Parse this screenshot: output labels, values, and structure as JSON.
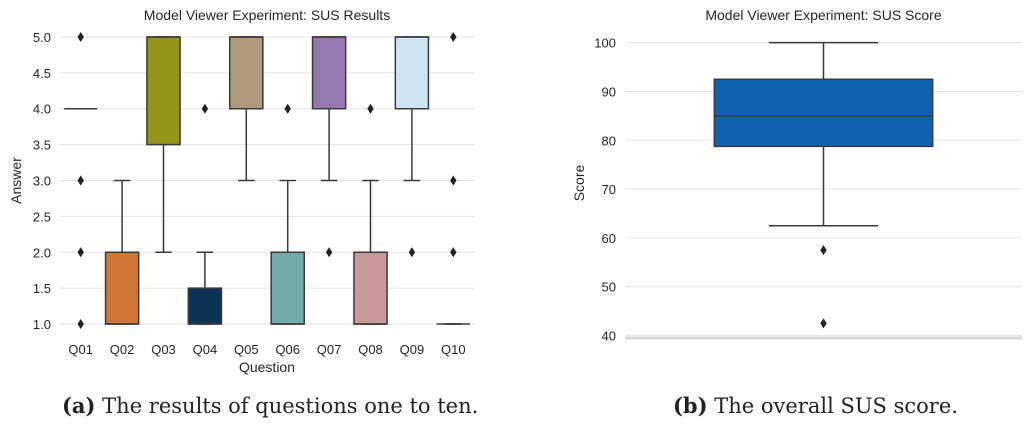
{
  "chart_data": [
    {
      "type": "box",
      "title": "Model Viewer Experiment: SUS Results",
      "xlabel": "Question",
      "ylabel": "Answer",
      "ylim": [
        0.875,
        5.125
      ],
      "yticks": [
        "1.0",
        "1.5",
        "2.0",
        "2.5",
        "3.0",
        "3.5",
        "4.0",
        "4.5",
        "5.0"
      ],
      "grid": true,
      "categories": [
        "Q01",
        "Q02",
        "Q03",
        "Q04",
        "Q05",
        "Q06",
        "Q07",
        "Q08",
        "Q09",
        "Q10"
      ],
      "boxes": [
        {
          "category": "Q01",
          "q1": 4,
          "median": 4,
          "q3": 4,
          "whisker_low": 4,
          "whisker_high": 4,
          "outliers": [
            1,
            2,
            3,
            5
          ],
          "color": "#2b2b2b"
        },
        {
          "category": "Q02",
          "q1": 1,
          "median": 1,
          "q3": 2,
          "whisker_low": 1,
          "whisker_high": 3,
          "outliers": [],
          "color": "#cf7535"
        },
        {
          "category": "Q03",
          "q1": 3.5,
          "median": 5,
          "q3": 5,
          "whisker_low": 2,
          "whisker_high": 5,
          "outliers": [],
          "color": "#949418"
        },
        {
          "category": "Q04",
          "q1": 1,
          "median": 1,
          "q3": 1.5,
          "whisker_low": 1,
          "whisker_high": 2,
          "outliers": [
            4
          ],
          "color": "#0b3356"
        },
        {
          "category": "Q05",
          "q1": 4,
          "median": 5,
          "q3": 5,
          "whisker_low": 3,
          "whisker_high": 5,
          "outliers": [],
          "color": "#b09a79"
        },
        {
          "category": "Q06",
          "q1": 1,
          "median": 1,
          "q3": 2,
          "whisker_low": 1,
          "whisker_high": 3,
          "outliers": [
            4
          ],
          "color": "#75aaad"
        },
        {
          "category": "Q07",
          "q1": 4,
          "median": 5,
          "q3": 5,
          "whisker_low": 3,
          "whisker_high": 5,
          "outliers": [
            2
          ],
          "color": "#9678b0"
        },
        {
          "category": "Q08",
          "q1": 1,
          "median": 1,
          "q3": 2,
          "whisker_low": 1,
          "whisker_high": 3,
          "outliers": [
            4
          ],
          "color": "#c99a99"
        },
        {
          "category": "Q09",
          "q1": 4,
          "median": 5,
          "q3": 5,
          "whisker_low": 3,
          "whisker_high": 5,
          "outliers": [
            2
          ],
          "color": "#cfe4f3"
        },
        {
          "category": "Q10",
          "q1": 1,
          "median": 1,
          "q3": 1,
          "whisker_low": 1,
          "whisker_high": 1,
          "outliers": [
            2,
            3,
            5
          ],
          "color": "#2b2b2b"
        }
      ]
    },
    {
      "type": "box",
      "title": "Model Viewer Experiment: SUS Score",
      "xlabel": "",
      "ylabel": "Score",
      "ylim": [
        39.5,
        103
      ],
      "yticks": [
        "40",
        "50",
        "60",
        "70",
        "80",
        "90",
        "100"
      ],
      "grid": true,
      "boxes": [
        {
          "q1": 78.75,
          "median": 85,
          "q3": 92.5,
          "whisker_low": 62.5,
          "whisker_high": 100,
          "outliers": [
            57.5,
            42.5
          ],
          "color": "#1163b0"
        }
      ]
    }
  ],
  "captions": {
    "a_label": "(a)",
    "a_text": " The results of questions one to ten.",
    "b_label": "(b)",
    "b_text": " The overall SUS score."
  }
}
